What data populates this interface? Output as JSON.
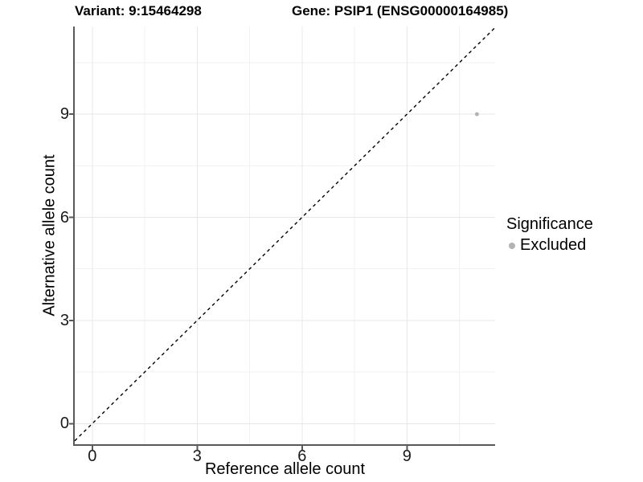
{
  "header": {
    "variant_title": "Variant: 9:15464298",
    "gene_title": "Gene: PSIP1 (ENSG00000164985)"
  },
  "legend": {
    "title": "Significance",
    "items": [
      {
        "label": "Excluded",
        "color": "#b3b3b3"
      }
    ]
  },
  "colors": {
    "background": "#ffffff",
    "axis_line": "#595959",
    "tick_mark": "#595959",
    "tick_text": "#1a1a1a",
    "grid_major": "#e7e7e7",
    "grid_minor": "#f2f2f2",
    "identity_line": "#000000",
    "point": "#b3b3b3"
  },
  "chart_data": {
    "type": "scatter",
    "title": "Variant: 9:15464298 | Gene: PSIP1 (ENSG00000164985)",
    "xlabel": "Reference allele count",
    "ylabel": "Alternative allele count",
    "xlim": [
      -0.5,
      11.52
    ],
    "ylim": [
      -0.6,
      11.55
    ],
    "x_ticks": [
      0,
      3,
      6,
      9
    ],
    "y_ticks": [
      0,
      3,
      6,
      9
    ],
    "x_minor_ticks": [
      1.5,
      4.5,
      7.5,
      10.5
    ],
    "y_minor_ticks": [
      1.5,
      4.5,
      7.5,
      10.5
    ],
    "grid": true,
    "legend_position": "right",
    "series": [
      {
        "name": "Excluded",
        "color": "#b3b3b3",
        "point_radius": 2.5,
        "points": [
          {
            "x": 11,
            "y": 9
          }
        ]
      }
    ],
    "reference_line": {
      "type": "identity",
      "equation": "y = x",
      "style": "dashed",
      "color": "#000000"
    }
  }
}
